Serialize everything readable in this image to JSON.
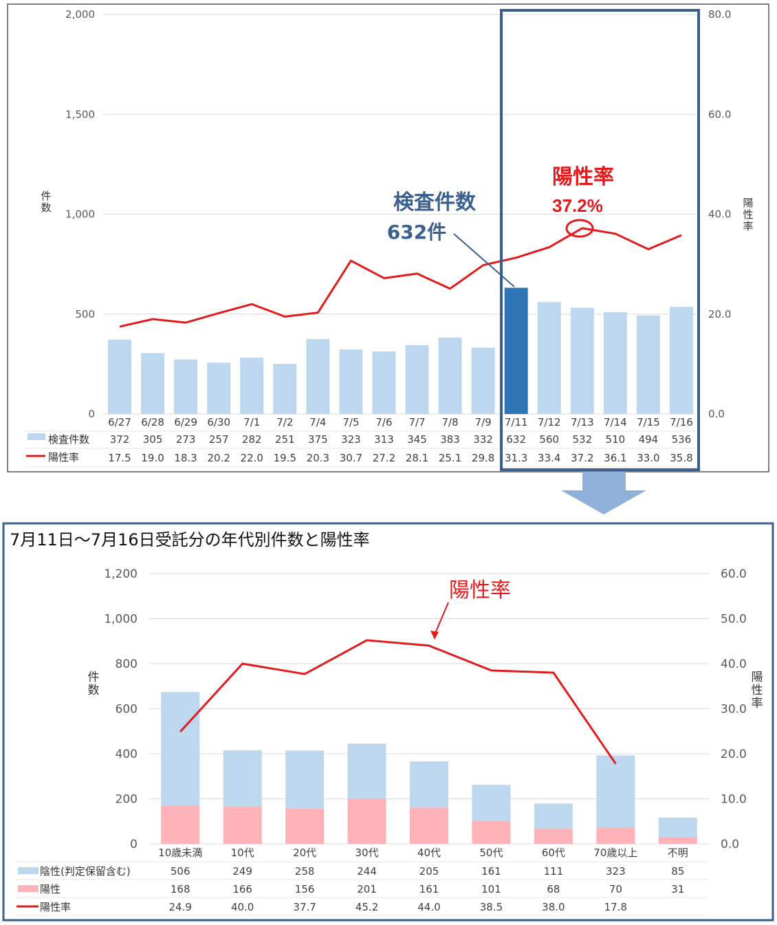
{
  "top_chart": {
    "left_axis_label": "件数",
    "right_axis_label": "陽性率",
    "left_ticks": [
      "2,000",
      "1,500",
      "1,000",
      "500",
      "0"
    ],
    "right_ticks": [
      "80.0",
      "60.0",
      "40.0",
      "20.0",
      "0.0"
    ],
    "callout_tests_title": "検査件数",
    "callout_tests_value": "632件",
    "callout_rate_title": "陽性率",
    "callout_rate_value": "37.2%"
  },
  "bottom_chart": {
    "title": "7月11日～7月16日受託分の年代別件数と陽性率",
    "left_axis_label": "件数",
    "right_axis_label": "陽性率",
    "left_ticks": [
      "1,200",
      "1,000",
      "800",
      "600",
      "400",
      "200",
      "0"
    ],
    "right_ticks": [
      "60.0",
      "50.0",
      "40.0",
      "30.0",
      "20.0",
      "10.0",
      "0.0"
    ],
    "callout_rate_title": "陽性率"
  },
  "colors": {
    "bar_light": "#bdd7ee",
    "bar_highlight": "#2e75b6",
    "line_red": "#e31a1c",
    "positive_pink": "#ffb3b8",
    "frame_blue": "#3a5f8f",
    "callout_blue": "#3a5f8f",
    "arrow_fill": "#8fb0d8"
  },
  "chart_data": [
    {
      "type": "bar",
      "categories": [
        "6/27",
        "6/28",
        "6/29",
        "6/30",
        "7/1",
        "7/2",
        "7/4",
        "7/5",
        "7/6",
        "7/7",
        "7/8",
        "7/9",
        "7/11",
        "7/12",
        "7/13",
        "7/14",
        "7/15",
        "7/16"
      ],
      "series": [
        {
          "name": "検査件数",
          "values": [
            372,
            305,
            273,
            257,
            282,
            251,
            375,
            323,
            313,
            345,
            383,
            332,
            632,
            560,
            532,
            510,
            494,
            536
          ]
        },
        {
          "name": "陽性率",
          "values": [
            17.5,
            19.0,
            18.3,
            20.2,
            22.0,
            19.5,
            20.3,
            30.7,
            27.2,
            28.1,
            25.1,
            29.8,
            31.3,
            33.4,
            37.2,
            36.1,
            33.0,
            35.8
          ]
        }
      ],
      "ylabel": "件数",
      "y2label": "陽性率",
      "ylim": [
        0,
        2000
      ],
      "y2lim": [
        0,
        80
      ],
      "grid": true
    },
    {
      "type": "bar",
      "title": "7月11日～7月16日受託分の年代別件数と陽性率",
      "categories": [
        "10歳未満",
        "10代",
        "20代",
        "30代",
        "40代",
        "50代",
        "60代",
        "70歳以上",
        "不明"
      ],
      "series": [
        {
          "name": "陰性(判定保留含む)",
          "values": [
            506,
            249,
            258,
            244,
            205,
            161,
            111,
            323,
            85
          ]
        },
        {
          "name": "陽性",
          "values": [
            168,
            166,
            156,
            201,
            161,
            101,
            68,
            70,
            31
          ]
        },
        {
          "name": "陽性率",
          "values": [
            24.9,
            40.0,
            37.7,
            45.2,
            44.0,
            38.5,
            38.0,
            17.8,
            null
          ]
        }
      ],
      "ylabel": "件数",
      "y2label": "陽性率",
      "ylim": [
        0,
        1200
      ],
      "y2lim": [
        0,
        60
      ],
      "grid": true
    }
  ]
}
